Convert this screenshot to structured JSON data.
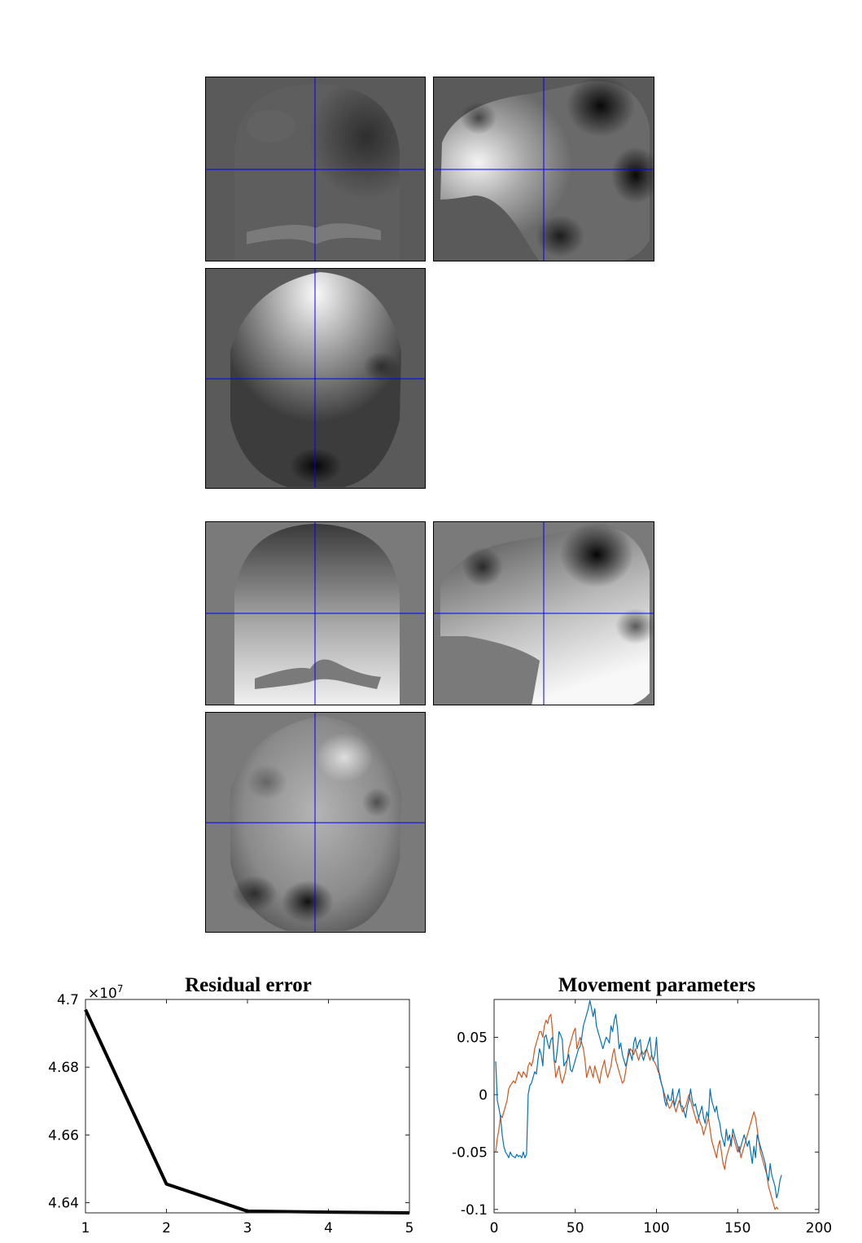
{
  "colors": {
    "crosshair": "#0000ff",
    "series1": "#0072bd",
    "series2": "#d95319",
    "residual_line": "#000000"
  },
  "images": [
    {
      "name": "field-map-1",
      "views": [
        "coronal",
        "sagittal",
        "axial"
      ]
    },
    {
      "name": "field-map-2",
      "views": [
        "coronal",
        "sagittal",
        "axial"
      ]
    }
  ],
  "chart_data": [
    {
      "type": "line",
      "title": "Residual error",
      "xlabel": "",
      "ylabel": "",
      "exponent_label": "×10",
      "exponent_power": "7",
      "x": [
        1,
        2,
        3,
        4,
        5
      ],
      "series": [
        {
          "values": [
            4.697,
            4.6455,
            4.6375,
            4.6372,
            4.637
          ]
        }
      ],
      "xlim": [
        1,
        5
      ],
      "ylim": [
        4.637,
        4.7
      ],
      "xticks": [
        "1",
        "2",
        "3",
        "4",
        "5"
      ],
      "yticks": [
        "4.7",
        "4.68",
        "4.66",
        "4.64"
      ],
      "ytick_values": [
        4.7,
        4.68,
        4.66,
        4.64
      ],
      "grid": false
    },
    {
      "type": "line",
      "title": "Movement parameters",
      "xlabel": "",
      "ylabel": "",
      "xlim": [
        0,
        200
      ],
      "ylim": [
        -0.103,
        0.083
      ],
      "xticks": [
        "0",
        "50",
        "100",
        "150",
        "200"
      ],
      "xtick_values": [
        0,
        50,
        100,
        150,
        200
      ],
      "yticks": [
        "0.05",
        "0",
        "-0.05",
        "-0.1"
      ],
      "ytick_values": [
        0.05,
        0,
        -0.05,
        -0.1
      ],
      "grid": false,
      "series": [
        {
          "values": [
            0.029,
            -0.005,
            -0.012,
            -0.02,
            -0.035,
            -0.045,
            -0.05,
            -0.052,
            -0.055,
            -0.05,
            -0.053,
            -0.054,
            -0.055,
            -0.052,
            -0.054,
            -0.053,
            -0.055,
            -0.05,
            -0.055,
            -0.052,
            0.0,
            0.008,
            0.01,
            0.015,
            0.02,
            0.018,
            0.03,
            0.04,
            0.035,
            0.025,
            0.05,
            0.052,
            0.045,
            0.04,
            0.048,
            0.05,
            0.03,
            0.028,
            0.04,
            0.055,
            0.052,
            0.048,
            0.025,
            0.028,
            0.03,
            0.035,
            0.022,
            0.02,
            0.025,
            0.03,
            0.035,
            0.04,
            0.042,
            0.05,
            0.06,
            0.065,
            0.07,
            0.075,
            0.082,
            0.075,
            0.068,
            0.075,
            0.06,
            0.055,
            0.05,
            0.045,
            0.04,
            0.045,
            0.05,
            0.048,
            0.045,
            0.06,
            0.055,
            0.065,
            0.07,
            0.058,
            0.04,
            0.045,
            0.035,
            0.03,
            0.025,
            0.03,
            0.04,
            0.035,
            0.03,
            0.045,
            0.05,
            0.04,
            0.045,
            0.048,
            0.035,
            0.03,
            0.035,
            0.04,
            0.045,
            0.05,
            0.035,
            0.03,
            0.035,
            0.05,
            0.025,
            0.015,
            0.01,
            0.005,
            -0.005,
            -0.01,
            0.0,
            -0.005,
            -0.005,
            0.005,
            -0.01,
            -0.005,
            0.0,
            0.005,
            -0.01,
            -0.01,
            -0.015,
            -0.02,
            -0.01,
            -0.005,
            0.005,
            -0.005,
            -0.01,
            -0.008,
            -0.015,
            -0.02,
            -0.015,
            -0.01,
            -0.02,
            -0.025,
            -0.015,
            -0.02,
            0.005,
            -0.005,
            -0.01,
            -0.015,
            -0.01,
            -0.02,
            -0.025,
            -0.035,
            -0.04,
            -0.045,
            -0.03,
            -0.04,
            -0.035,
            -0.045,
            -0.03,
            -0.035,
            -0.04,
            -0.045,
            -0.05,
            -0.045,
            -0.04,
            -0.035,
            -0.04,
            -0.045,
            -0.04,
            -0.05,
            -0.06,
            -0.045,
            -0.055,
            -0.035,
            -0.04,
            -0.045,
            -0.05,
            -0.055,
            -0.06,
            -0.07,
            -0.075,
            -0.06,
            -0.07,
            -0.075,
            -0.08,
            -0.09,
            -0.085,
            -0.075,
            -0.07
          ]
        },
        {
          "values": [
            -0.05,
            -0.038,
            -0.03,
            -0.018,
            -0.02,
            -0.015,
            -0.01,
            -0.005,
            0.005,
            0.008,
            0.01,
            0.012,
            0.01,
            0.015,
            0.02,
            0.018,
            0.015,
            0.02,
            0.018,
            0.015,
            0.025,
            0.028,
            0.025,
            0.03,
            0.04,
            0.045,
            0.05,
            0.055,
            0.055,
            0.05,
            0.06,
            0.065,
            0.062,
            0.068,
            0.07,
            0.055,
            0.03,
            0.015,
            0.02,
            0.025,
            0.015,
            0.01,
            0.015,
            0.02,
            0.03,
            0.04,
            0.045,
            0.05,
            0.055,
            0.058,
            0.04,
            0.045,
            0.05,
            0.045,
            0.04,
            0.03,
            0.015,
            0.02,
            0.025,
            0.02,
            0.015,
            0.025,
            0.02,
            0.015,
            0.01,
            0.02,
            0.025,
            0.03,
            0.02,
            0.015,
            0.02,
            0.025,
            0.035,
            0.04,
            0.03,
            0.025,
            0.02,
            0.015,
            0.01,
            0.012,
            0.02,
            0.03,
            0.035,
            0.04,
            0.038,
            0.035,
            0.04,
            0.035,
            0.03,
            0.035,
            0.038,
            0.035,
            0.038,
            0.04,
            0.035,
            0.03,
            0.035,
            0.03,
            0.028,
            0.025,
            0.02,
            0.018,
            0.01,
            0.005,
            0.0,
            -0.005,
            -0.008,
            -0.012,
            -0.01,
            -0.005,
            -0.01,
            -0.015,
            -0.01,
            -0.005,
            -0.01,
            -0.015,
            -0.012,
            -0.01,
            -0.005,
            0.0,
            -0.005,
            -0.01,
            -0.015,
            -0.02,
            -0.025,
            -0.02,
            -0.025,
            -0.028,
            -0.035,
            -0.03,
            -0.025,
            -0.02,
            -0.03,
            -0.04,
            -0.045,
            -0.05,
            -0.055,
            -0.045,
            -0.04,
            -0.05,
            -0.06,
            -0.065,
            -0.055,
            -0.05,
            -0.045,
            -0.04,
            -0.035,
            -0.04,
            -0.045,
            -0.05,
            -0.045,
            -0.055,
            -0.05,
            -0.045,
            -0.04,
            -0.035,
            -0.03,
            -0.025,
            -0.02,
            -0.015,
            -0.02,
            -0.03,
            -0.04,
            -0.05,
            -0.055,
            -0.06,
            -0.065,
            -0.07,
            -0.08,
            -0.085,
            -0.09,
            -0.095,
            -0.1,
            -0.098,
            -0.1
          ]
        }
      ]
    }
  ]
}
